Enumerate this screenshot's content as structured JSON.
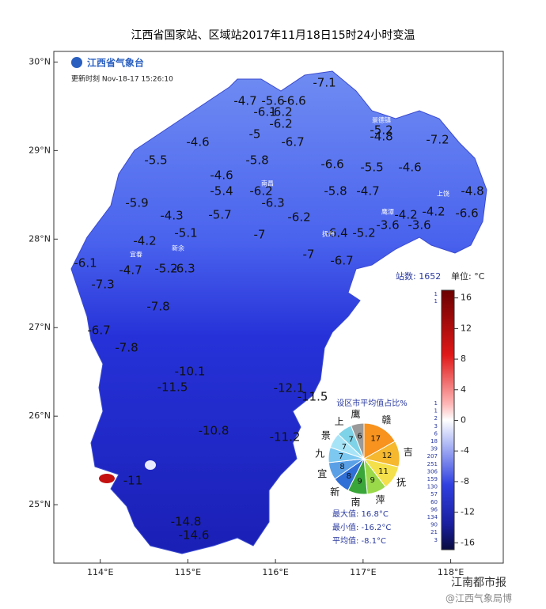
{
  "title": "江西省国家站、区域站2017年11月18日15时24小时变温",
  "logo": "江西省气象台",
  "update_time": "更新时刻 Nov-18-17 15:26:10",
  "map": {
    "xlim": [
      113.47,
      118.6
    ],
    "ylim": [
      24.34,
      30.12
    ],
    "xticks": [
      {
        "value": 114,
        "label": "114°E"
      },
      {
        "value": 115,
        "label": "115°E"
      },
      {
        "value": 116,
        "label": "116°E"
      },
      {
        "value": 117,
        "label": "117°E"
      },
      {
        "value": 118,
        "label": "118°E"
      }
    ],
    "yticks": [
      {
        "value": 25,
        "label": "25°N"
      },
      {
        "value": 26,
        "label": "26°N"
      },
      {
        "value": 27,
        "label": "27°N"
      },
      {
        "value": 28,
        "label": "28°N"
      },
      {
        "value": 29,
        "label": "29°N"
      },
      {
        "value": 30,
        "label": "30°N"
      }
    ],
    "labels": [
      -4.7,
      -5.6,
      -6.6,
      -7.1,
      -6.1,
      -6.2,
      -6.2,
      -5.0,
      -6.7,
      -5.2,
      -4.8,
      -7.2,
      -4.6,
      -5.5,
      -5.8,
      -6.6,
      -5.5,
      -4.6,
      -4.6,
      -5.4,
      -6.2,
      -6.3,
      -5.8,
      -4.7,
      -4.8,
      -5.9,
      -4.3,
      -5.7,
      -6.2,
      -6.4,
      -5.2,
      -3.6,
      -3.6,
      -4.2,
      -4.2,
      -6.6,
      -4.2,
      -5.1,
      -7.0,
      -7.0,
      -6.7,
      -6.1,
      -4.7,
      -5.2,
      -6.3,
      -7.3,
      -7.8,
      -6.7,
      -7.8,
      -10.1,
      -11.5,
      -12.1,
      -11.5,
      -10.8,
      -11.2,
      -11.0,
      -14.8,
      -14.6
    ],
    "cities": [
      "景德镇",
      "南昌",
      "上饶",
      "鹰潭",
      "抚州",
      "宜春",
      "新余"
    ]
  },
  "station_count": "站数: 1652",
  "unit": "单位: °C",
  "colorbar": {
    "lim": [
      -16.9,
      17.0
    ],
    "ticks": [
      16,
      12,
      8,
      4,
      0,
      -4,
      -8,
      -12,
      -16
    ],
    "counts": [
      1,
      1,
      1,
      1,
      2,
      3,
      6,
      18,
      39,
      207,
      251,
      306,
      159,
      130,
      57,
      60,
      96,
      134,
      90,
      21,
      3
    ]
  },
  "pie": {
    "title": "设区市平均值占比%",
    "categories": [
      "赣",
      "吉",
      "抚",
      "萍",
      "南",
      "新",
      "宜",
      "九",
      "景",
      "上",
      "鹰"
    ],
    "values": [
      17,
      12,
      11,
      9,
      9,
      8,
      8,
      7,
      7,
      7,
      6
    ],
    "colors": [
      "#f7931e",
      "#f5b82e",
      "#f4e04a",
      "#9ad94a",
      "#3aa63a",
      "#2f6fd6",
      "#5aa0e6",
      "#7cc8f0",
      "#a8e4f7",
      "#7fd3e8",
      "#9a9a9a"
    ]
  },
  "stats": [
    "最大值: 16.8°C",
    "最小值: -16.2°C",
    "平均值: -8.1°C"
  ],
  "watermark": [
    "江南都市报",
    "@江西气象局博"
  ]
}
